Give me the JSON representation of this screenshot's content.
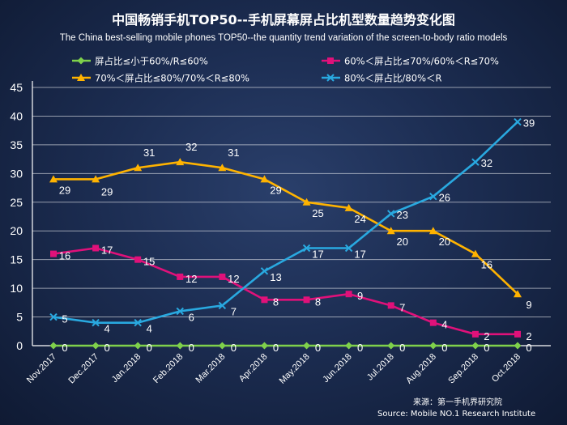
{
  "header": {
    "title": "中国畅销手机TOP50--手机屏幕屏占比机型数量趋势变化图",
    "subtitle": "The China best-selling mobile phones TOP50--the quantity trend variation of the screen-to-body ratio models"
  },
  "source": {
    "line1": "来源：第一手机界研究院",
    "line2": "Source: Mobile NO.1 Research Institute"
  },
  "chart_data": {
    "type": "line",
    "categories": [
      "Nov.2017",
      "Dec.2017",
      "Jan.2018",
      "Feb.2018",
      "Mar.2018",
      "Apr.2018",
      "May.2018",
      "Jun.2018",
      "Jul.2018",
      "Aug.2018",
      "Sep.2018",
      "Oct.2018"
    ],
    "ylim": [
      0,
      45
    ],
    "yticks": [
      0,
      5,
      10,
      15,
      20,
      25,
      30,
      35,
      40,
      45
    ],
    "grid": true,
    "legend_position": "top",
    "series": [
      {
        "name": "屏占比≤小于60%/R≤60%",
        "color": "#7fd14b",
        "marker": "diamond",
        "values": [
          0,
          0,
          0,
          0,
          0,
          0,
          0,
          0,
          0,
          0,
          0,
          0
        ]
      },
      {
        "name": "60%＜屏占比≤70%/60%＜R≤70%",
        "color": "#e0117a",
        "marker": "square",
        "values": [
          16,
          17,
          15,
          12,
          12,
          8,
          8,
          9,
          7,
          4,
          2,
          2
        ]
      },
      {
        "name": "70%＜屏占比≤80%/70%＜R≤80%",
        "color": "#ffb300",
        "marker": "triangle",
        "values": [
          29,
          29,
          31,
          32,
          31,
          29,
          25,
          24,
          20,
          20,
          16,
          9
        ]
      },
      {
        "name": "80%＜屏占比/80%＜R",
        "color": "#29a9e0",
        "marker": "x",
        "values": [
          5,
          4,
          4,
          6,
          7,
          13,
          17,
          17,
          23,
          26,
          32,
          39
        ]
      }
    ]
  }
}
